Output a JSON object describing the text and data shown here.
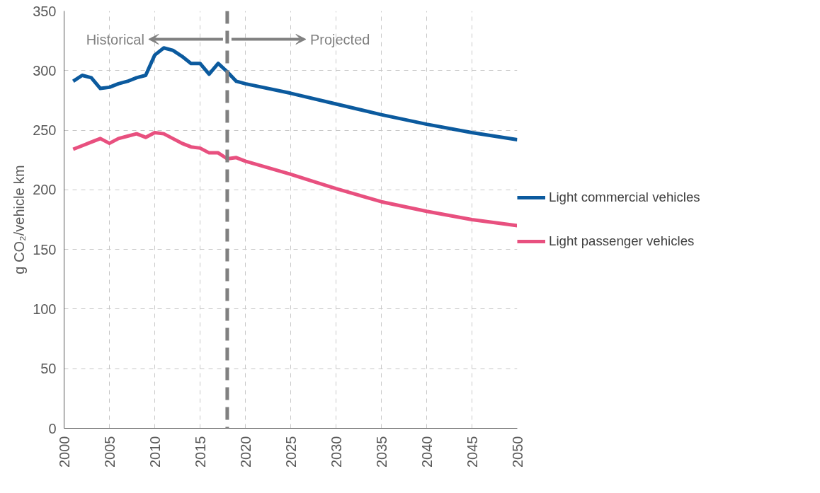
{
  "chart_data": {
    "type": "line",
    "ylabel": "g CO₂/vehicle km",
    "x": [
      2001,
      2002,
      2003,
      2004,
      2005,
      2006,
      2007,
      2008,
      2009,
      2010,
      2011,
      2012,
      2013,
      2014,
      2015,
      2016,
      2017,
      2018,
      2019,
      2020,
      2025,
      2030,
      2035,
      2040,
      2045,
      2050
    ],
    "series": [
      {
        "name": "Light commercial vehicles",
        "color": "#0b5a9e",
        "values": [
          291,
          296,
          294,
          285,
          286,
          289,
          291,
          294,
          296,
          313,
          319,
          317,
          312,
          306,
          306,
          297,
          306,
          299,
          291,
          289,
          281,
          272,
          263,
          255,
          248,
          242
        ]
      },
      {
        "name": "Light passenger vehicles",
        "color": "#e8507f",
        "values": [
          234,
          237,
          240,
          243,
          239,
          243,
          245,
          247,
          244,
          248,
          247,
          243,
          239,
          236,
          235,
          231,
          231,
          226,
          227,
          224,
          213,
          201,
          190,
          182,
          175,
          170
        ]
      }
    ],
    "xlim": [
      2000,
      2050
    ],
    "xticks": [
      2000,
      2005,
      2010,
      2015,
      2020,
      2025,
      2030,
      2035,
      2040,
      2045,
      2050
    ],
    "ylim": [
      0,
      350
    ],
    "yticks": [
      0,
      50,
      100,
      150,
      200,
      250,
      300,
      350
    ],
    "ref_lines": [
      {
        "axis": "x",
        "value": 2018,
        "color": "#808080",
        "line_style": "dashed"
      }
    ],
    "annotations": [
      "Historical",
      "Projected"
    ],
    "grid": true,
    "legend": "right",
    "line_style": "solid",
    "marker": "none"
  }
}
